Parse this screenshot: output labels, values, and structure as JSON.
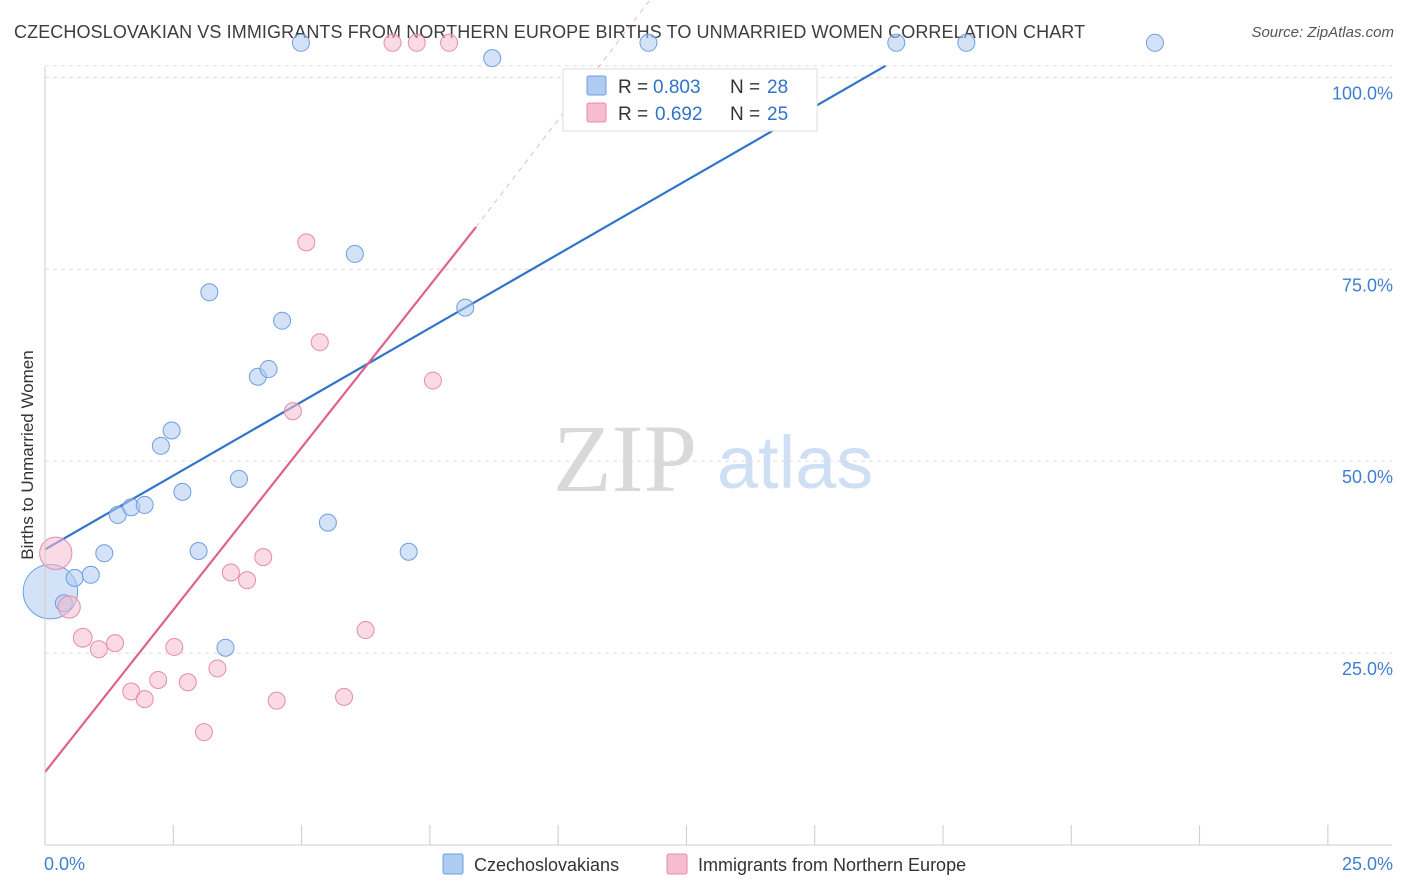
{
  "title": "CZECHOSLOVAKIAN VS IMMIGRANTS FROM NORTHERN EUROPE BIRTHS TO UNMARRIED WOMEN CORRELATION CHART",
  "source": "Source: ZipAtlas.com",
  "watermark": {
    "zip": "ZIP",
    "atlas": "atlas"
  },
  "legend_stats": [
    {
      "r_label": "R = ",
      "r_value": "0.803",
      "n_label": "N = ",
      "n_value": "28",
      "color": "#aecbf0",
      "stroke": "#6d9ee0"
    },
    {
      "r_label": "R = ",
      "r_value": "0.692",
      "n_label": "N = ",
      "n_value": "25",
      "color": "#f6bdd0",
      "stroke": "#e88aa9"
    }
  ],
  "chart_data": {
    "type": "scatter",
    "title": "CZECHOSLOVAKIAN VS IMMIGRANTS FROM NORTHERN EUROPE BIRTHS TO UNMARRIED WOMEN CORRELATION CHART",
    "xlabel": "",
    "ylabel": "Births to Unmarried Women",
    "xlim": [
      0,
      25
    ],
    "ylim": [
      0,
      102
    ],
    "x_tick_labels": [
      "0.0%",
      "25.0%"
    ],
    "y_ticks": [
      25,
      50,
      75,
      100
    ],
    "y_tick_labels": [
      "25.0%",
      "50.0%",
      "75.0%",
      "100.0%"
    ],
    "grid": true,
    "legend_position": "bottom-center",
    "series": [
      {
        "name": "Czechoslovakians",
        "color": "#aecbf0",
        "stroke": "#6d9ee0",
        "line_color": "#2f74c9",
        "trend": {
          "x0": 0,
          "y0": 38.5,
          "x1": 15.6,
          "y1": 101.5
        },
        "points": [
          {
            "x": 0.1,
            "y": 33,
            "s": 3.2
          },
          {
            "x": 0.35,
            "y": 31.5,
            "s": 1
          },
          {
            "x": 0.55,
            "y": 34.8,
            "s": 1
          },
          {
            "x": 0.85,
            "y": 35.2,
            "s": 1
          },
          {
            "x": 1.1,
            "y": 38,
            "s": 1
          },
          {
            "x": 1.35,
            "y": 43,
            "s": 1
          },
          {
            "x": 1.6,
            "y": 44,
            "s": 1
          },
          {
            "x": 1.85,
            "y": 44.3,
            "s": 1
          },
          {
            "x": 2.15,
            "y": 52,
            "s": 1
          },
          {
            "x": 2.35,
            "y": 54,
            "s": 1
          },
          {
            "x": 2.55,
            "y": 46,
            "s": 1
          },
          {
            "x": 2.85,
            "y": 38.3,
            "s": 1
          },
          {
            "x": 3.05,
            "y": 72,
            "s": 1
          },
          {
            "x": 3.35,
            "y": 25.7,
            "s": 1
          },
          {
            "x": 3.6,
            "y": 47.7,
            "s": 1
          },
          {
            "x": 3.95,
            "y": 61,
            "s": 1
          },
          {
            "x": 4.15,
            "y": 62,
            "s": 1
          },
          {
            "x": 4.4,
            "y": 68.3,
            "s": 1
          },
          {
            "x": 4.75,
            "y": 104.5,
            "s": 1
          },
          {
            "x": 5.25,
            "y": 42,
            "s": 1
          },
          {
            "x": 5.75,
            "y": 77,
            "s": 1
          },
          {
            "x": 6.75,
            "y": 38.2,
            "s": 1
          },
          {
            "x": 7.8,
            "y": 70,
            "s": 1
          },
          {
            "x": 8.3,
            "y": 102.5,
            "s": 1
          },
          {
            "x": 11.2,
            "y": 104.5,
            "s": 1
          },
          {
            "x": 15.8,
            "y": 104.5,
            "s": 1
          },
          {
            "x": 17.1,
            "y": 104.5,
            "s": 1
          },
          {
            "x": 20.6,
            "y": 104.5,
            "s": 1
          }
        ]
      },
      {
        "name": "Immigrants from Northern Europe",
        "color": "#f6bdd0",
        "stroke": "#e88aa9",
        "line_color": "#e0608d",
        "trend": {
          "x0": 0,
          "y0": 9.5,
          "x1": 8.0,
          "y1": 80.5
        },
        "trend_dashed_to": {
          "x1": 12.2,
          "y1": 119
        },
        "points": [
          {
            "x": 0.2,
            "y": 38,
            "s": 1.9
          },
          {
            "x": 0.45,
            "y": 31,
            "s": 1.3
          },
          {
            "x": 0.7,
            "y": 27,
            "s": 1.1
          },
          {
            "x": 1.0,
            "y": 25.5,
            "s": 1
          },
          {
            "x": 1.3,
            "y": 26.3,
            "s": 1
          },
          {
            "x": 1.6,
            "y": 20,
            "s": 1
          },
          {
            "x": 1.85,
            "y": 19,
            "s": 1
          },
          {
            "x": 2.1,
            "y": 21.5,
            "s": 1
          },
          {
            "x": 2.4,
            "y": 25.8,
            "s": 1
          },
          {
            "x": 2.65,
            "y": 21.2,
            "s": 1
          },
          {
            "x": 2.95,
            "y": 14.7,
            "s": 1
          },
          {
            "x": 3.2,
            "y": 23,
            "s": 1
          },
          {
            "x": 3.45,
            "y": 35.5,
            "s": 1
          },
          {
            "x": 3.75,
            "y": 34.5,
            "s": 1
          },
          {
            "x": 4.05,
            "y": 37.5,
            "s": 1
          },
          {
            "x": 4.3,
            "y": 18.8,
            "s": 1
          },
          {
            "x": 4.6,
            "y": 56.5,
            "s": 1
          },
          {
            "x": 4.85,
            "y": 78.5,
            "s": 1
          },
          {
            "x": 5.1,
            "y": 65.5,
            "s": 1
          },
          {
            "x": 5.55,
            "y": 19.3,
            "s": 1
          },
          {
            "x": 5.95,
            "y": 28,
            "s": 1
          },
          {
            "x": 6.45,
            "y": 104.5,
            "s": 1
          },
          {
            "x": 6.9,
            "y": 104.5,
            "s": 1
          },
          {
            "x": 7.2,
            "y": 60.5,
            "s": 1
          },
          {
            "x": 7.5,
            "y": 104.5,
            "s": 1
          }
        ]
      }
    ]
  }
}
